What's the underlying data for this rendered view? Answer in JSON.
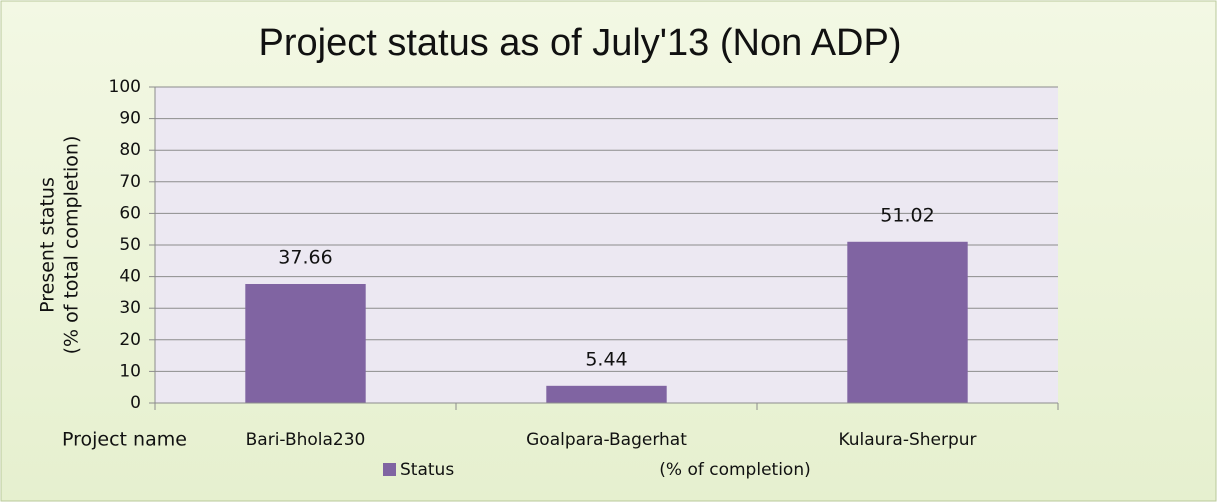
{
  "chart_data": {
    "type": "bar",
    "title": "Project status as of  July'13 (Non ADP)",
    "ylabel": [
      "Present status",
      "(% of total completion)"
    ],
    "xlabel": "Project name",
    "categories": [
      "Bari-Bhola230",
      "Goalpara-Bagerhat",
      "Kulaura-Sherpur"
    ],
    "series": [
      {
        "name": "Status",
        "color": "#8064a2",
        "values": [
          37.66,
          5.44,
          51.02
        ]
      }
    ],
    "legend_note": "(% of completion)",
    "ylim": [
      0,
      100
    ],
    "yticks": [
      0,
      10,
      20,
      30,
      40,
      50,
      60,
      70,
      80,
      90,
      100
    ],
    "grid": true,
    "legend": "bottom"
  }
}
